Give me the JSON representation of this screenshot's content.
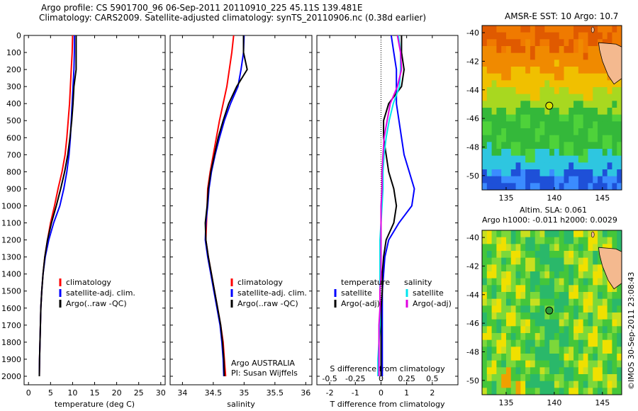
{
  "title_line1": "Argo profile: CS 5901700_96 06-Sep-2011 20110910_225 45.11S 139.481E",
  "title_line2": "Climatology: CARS2009. Satellite-adjusted climatology: synTS_20110906.nc (0.38d earlier)",
  "colors": {
    "climatology": "#ff0000",
    "satellite": "#0000ff",
    "argo": "#000000",
    "sat_sal": "#00e5ee",
    "argo_sal": "#e000e0"
  },
  "chart_data": [
    {
      "type": "line",
      "id": "temperature",
      "xlabel": "temperature (deg C)",
      "ylabel": "",
      "xlim": [
        -1,
        31
      ],
      "ylim": [
        2050,
        0
      ],
      "xticks": [
        0,
        5,
        10,
        15,
        20,
        25,
        30
      ],
      "yticks": [
        0,
        100,
        200,
        300,
        400,
        500,
        600,
        700,
        800,
        900,
        1000,
        1100,
        1200,
        1300,
        1400,
        1500,
        1600,
        1700,
        1800,
        1900,
        2000
      ],
      "legend": [
        "climatology",
        "satellite-adj. clim.",
        "Argo(..raw -QC)"
      ],
      "series": [
        {
          "name": "climatology",
          "color": "#ff0000",
          "x": [
            10.0,
            9.9,
            9.7,
            9.5,
            9.3,
            9.0,
            8.7,
            8.3,
            7.6,
            6.7,
            5.9,
            5.0,
            4.3,
            3.7,
            3.3,
            3.0,
            2.8,
            2.7,
            2.6,
            2.5,
            2.45
          ],
          "y": [
            0,
            100,
            200,
            300,
            400,
            500,
            600,
            700,
            800,
            900,
            1000,
            1100,
            1200,
            1300,
            1400,
            1500,
            1600,
            1700,
            1800,
            1900,
            2000
          ]
        },
        {
          "name": "satellite-adj. clim.",
          "color": "#0000ff",
          "x": [
            10.4,
            10.4,
            10.3,
            10.1,
            9.9,
            9.7,
            9.5,
            9.2,
            8.7,
            8.0,
            7.1,
            5.7,
            4.6,
            3.8,
            3.3,
            3.0,
            2.8,
            2.7,
            2.6,
            2.5,
            2.45
          ],
          "y": [
            0,
            100,
            200,
            300,
            400,
            500,
            600,
            700,
            800,
            900,
            1000,
            1100,
            1200,
            1300,
            1400,
            1500,
            1600,
            1700,
            1800,
            1900,
            2000
          ]
        },
        {
          "name": "Argo(..raw -QC)",
          "color": "#000000",
          "x": [
            10.8,
            10.8,
            10.8,
            10.3,
            10.1,
            9.8,
            9.4,
            8.9,
            8.2,
            7.3,
            6.3,
            5.2,
            4.3,
            3.7,
            3.3,
            3.0,
            2.8,
            2.7,
            2.6,
            2.5,
            2.45
          ],
          "y": [
            0,
            100,
            200,
            300,
            400,
            500,
            600,
            700,
            800,
            900,
            1000,
            1100,
            1200,
            1300,
            1400,
            1500,
            1600,
            1700,
            1800,
            1900,
            2000
          ]
        }
      ]
    },
    {
      "type": "line",
      "id": "salinity",
      "xlabel": "salinity",
      "ylabel": "",
      "xlim": [
        33.8,
        36.1
      ],
      "ylim": [
        2050,
        0
      ],
      "xticks": [
        34,
        34.5,
        35,
        35.5,
        36
      ],
      "legend": [
        "climatology",
        "satellite-adj. clim.",
        "Argo(..raw -QC)"
      ],
      "annotation": [
        "Argo AUSTRALIA",
        "PI: Susan Wijffels"
      ],
      "series": [
        {
          "name": "climatology",
          "color": "#ff0000",
          "x": [
            34.83,
            34.8,
            34.76,
            34.72,
            34.66,
            34.6,
            34.55,
            34.5,
            34.45,
            34.41,
            34.4,
            34.39,
            34.38,
            34.42,
            34.47,
            34.52,
            34.57,
            34.62,
            34.66,
            34.68,
            34.7
          ],
          "y": [
            0,
            100,
            200,
            300,
            400,
            500,
            600,
            700,
            800,
            900,
            1000,
            1100,
            1200,
            1300,
            1400,
            1500,
            1600,
            1700,
            1800,
            1900,
            2000
          ]
        },
        {
          "name": "satellite-adj. clim.",
          "color": "#0000ff",
          "x": [
            35.0,
            34.99,
            34.95,
            34.9,
            34.78,
            34.68,
            34.6,
            34.53,
            34.47,
            34.43,
            34.41,
            34.38,
            34.37,
            34.41,
            34.46,
            34.51,
            34.56,
            34.61,
            34.64,
            34.66,
            34.67
          ],
          "y": [
            0,
            100,
            200,
            300,
            400,
            500,
            600,
            700,
            800,
            900,
            1000,
            1100,
            1200,
            1300,
            1400,
            1500,
            1600,
            1700,
            1800,
            1900,
            2000
          ]
        },
        {
          "name": "Argo(..raw -QC)",
          "color": "#000000",
          "x": [
            34.99,
            34.99,
            35.05,
            34.88,
            34.75,
            34.66,
            34.58,
            34.52,
            34.46,
            34.42,
            34.4,
            34.37,
            34.38,
            34.42,
            34.47,
            34.52,
            34.57,
            34.62,
            34.65,
            34.67,
            34.68
          ],
          "y": [
            0,
            100,
            200,
            300,
            400,
            500,
            600,
            700,
            800,
            900,
            1000,
            1100,
            1200,
            1300,
            1400,
            1500,
            1600,
            1700,
            1800,
            1900,
            2000
          ]
        }
      ]
    },
    {
      "type": "line",
      "id": "differences",
      "xlabel": "T difference from climatology",
      "top_axis_label": "S difference from climatology",
      "xlim": [
        -2.5,
        3
      ],
      "ylim": [
        2050,
        0
      ],
      "xticks": [
        -2,
        -1,
        0,
        1,
        2
      ],
      "s_ticks": [
        -0.5,
        -0.25,
        0,
        0.25,
        0.5
      ],
      "legend_temperature_title": "temperature",
      "legend_salinity_title": "salinity",
      "legend": [
        "satellite",
        "Argo(-adj)",
        "satellite",
        "Argo(-adj)"
      ],
      "series": [
        {
          "name": "temperature satellite",
          "color": "#0000ff",
          "x": [
            0.4,
            0.5,
            0.6,
            0.6,
            0.6,
            0.7,
            0.8,
            0.9,
            1.1,
            1.3,
            1.2,
            0.7,
            0.3,
            0.15,
            0.1,
            0.05,
            0.05,
            0.05,
            0.05,
            0.05,
            0.05
          ],
          "y": [
            0,
            100,
            200,
            300,
            400,
            500,
            600,
            700,
            800,
            900,
            1000,
            1100,
            1200,
            1300,
            1400,
            1500,
            1600,
            1700,
            1800,
            1900,
            2000
          ]
        },
        {
          "name": "temperature Argo(-adj)",
          "color": "#000000",
          "x": [
            0.8,
            0.8,
            0.9,
            0.8,
            0.3,
            0.1,
            0.1,
            0.2,
            0.3,
            0.5,
            0.6,
            0.5,
            0.2,
            0.1,
            0.05,
            0.05,
            0.0,
            0.0,
            0.0,
            0.0,
            0.0
          ],
          "y": [
            0,
            100,
            200,
            300,
            400,
            500,
            600,
            700,
            800,
            900,
            1000,
            1100,
            1200,
            1300,
            1400,
            1500,
            1600,
            1700,
            1800,
            1900,
            2000
          ]
        },
        {
          "name": "salinity satellite",
          "color": "#00e5ee",
          "x": [
            0.17,
            0.19,
            0.19,
            0.18,
            0.12,
            0.08,
            0.05,
            0.03,
            0.02,
            0.02,
            0.01,
            0.0,
            -0.01,
            -0.01,
            -0.01,
            -0.01,
            -0.01,
            -0.01,
            -0.02,
            -0.03,
            -0.03
          ],
          "y": [
            0,
            100,
            200,
            300,
            400,
            500,
            600,
            700,
            800,
            900,
            1000,
            1100,
            1200,
            1300,
            1400,
            1500,
            1600,
            1700,
            1800,
            1900,
            2000
          ]
        },
        {
          "name": "salinity Argo(-adj)",
          "color": "#e000e0",
          "x": [
            0.16,
            0.19,
            0.2,
            0.16,
            0.09,
            0.06,
            0.03,
            0.02,
            0.01,
            0.01,
            0.0,
            0.0,
            0.0,
            0.0,
            0.0,
            -0.01,
            -0.01,
            -0.02,
            -0.02,
            -0.02,
            -0.02
          ],
          "y": [
            0,
            100,
            200,
            300,
            400,
            500,
            600,
            700,
            800,
            900,
            1000,
            1100,
            1200,
            1300,
            1400,
            1500,
            1600,
            1700,
            1800,
            1900,
            2000
          ]
        }
      ]
    },
    {
      "type": "heatmap",
      "id": "sst_map",
      "title": "AMSR-E SST: 10 Argo: 10.7",
      "xlim": [
        132.5,
        147
      ],
      "ylim": [
        -51,
        -39.5
      ],
      "xticks": [
        135,
        140,
        145
      ],
      "yticks": [
        -40,
        -42,
        -44,
        -46,
        -48,
        -50
      ],
      "marker": {
        "lon": 139.48,
        "lat": -45.11
      }
    },
    {
      "type": "heatmap",
      "id": "sla_map",
      "title_line1": "Altim. SLA: 0.061",
      "title_line2": "Argo h1000: -0.011 h2000: 0.0029",
      "xlim": [
        132.5,
        147
      ],
      "ylim": [
        -51,
        -39.5
      ],
      "xticks": [
        135,
        140,
        145
      ],
      "yticks": [
        -40,
        -42,
        -44,
        -46,
        -48,
        -50
      ],
      "marker": {
        "lon": 139.48,
        "lat": -45.11
      }
    }
  ],
  "side_caption": "©IMOS 30-Sep-2011 23:08:43"
}
